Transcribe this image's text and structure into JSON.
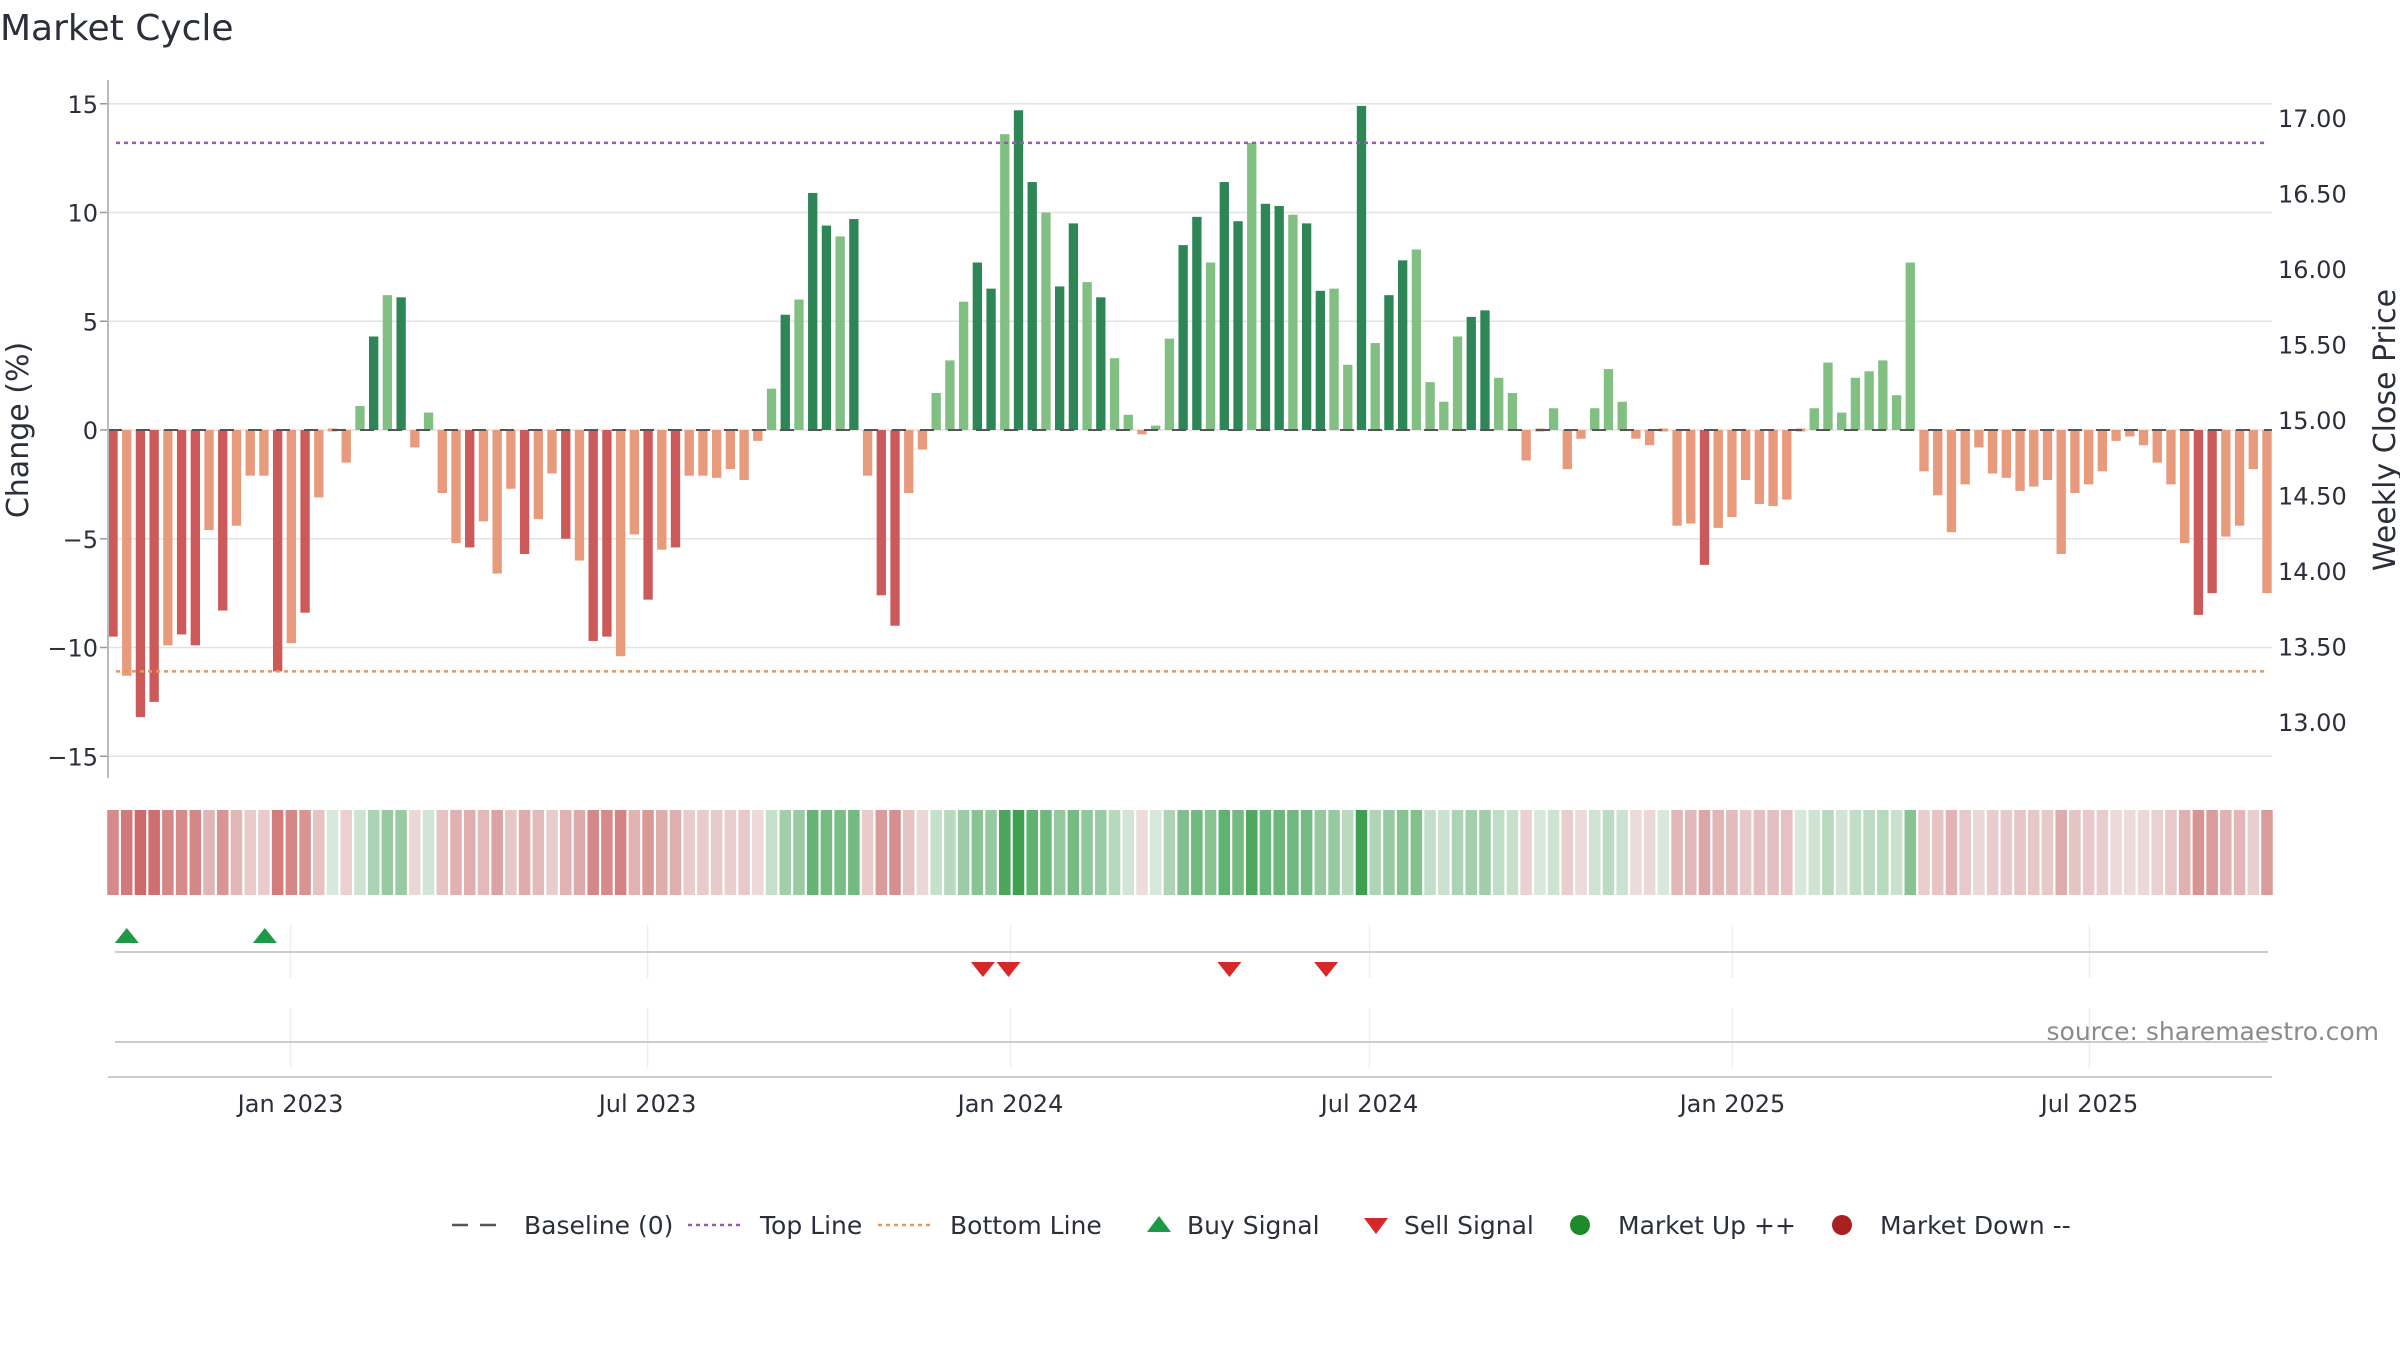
{
  "title": "Market Cycle",
  "source": "source: sharemaestro.com",
  "colors": {
    "strong_up": "#2e8657",
    "weak_up": "#82bf82",
    "strong_down": "#cc5a5a",
    "weak_down": "#e89a7c",
    "top_line": "#9b59b6",
    "bottom_line": "#e8965a",
    "buy": "#1e9a46",
    "sell": "#d62828",
    "market_up": "#1e8a2a",
    "market_down": "#a82020",
    "baseline": "#555555"
  },
  "chart_data": {
    "type": "bar",
    "x_start": "2022-10-03",
    "x_step_days": 7,
    "x_range": [
      "2022-10-03",
      "2025-09-29"
    ],
    "x_ticks": [
      "Jan 2023",
      "Jul 2023",
      "Jan 2024",
      "Jul 2024",
      "Jan 2025",
      "Jul 2025"
    ],
    "x_tick_dates": [
      "2023-01-01",
      "2023-07-01",
      "2024-01-01",
      "2024-07-01",
      "2025-01-01",
      "2025-07-01"
    ],
    "ylabel": "Change (%)",
    "ylim": [
      -16,
      16
    ],
    "y_ticks": [
      15,
      10,
      5,
      0,
      -5,
      -10,
      -15
    ],
    "y_tick_labels": [
      "15",
      "10",
      "5",
      "0",
      "−5",
      "−10",
      "−15"
    ],
    "y2label": "Weekly Close Price",
    "y2_ticks": [
      17.0,
      16.5,
      16.0,
      15.5,
      15.0,
      14.5,
      14.0,
      13.5,
      13.0
    ],
    "y2_tick_labels": [
      "17.00",
      "16.50",
      "16.00",
      "15.50",
      "15.00",
      "14.50",
      "14.00",
      "13.50",
      "13.00"
    ],
    "y2lim": [
      12.7,
      17.0
    ],
    "top_line": 13.2,
    "bottom_line": -11.1,
    "baseline": 0,
    "grid": true,
    "legend_position": "bottom-center",
    "series": [
      {
        "name": "Change (%)",
        "values": [
          -9.5,
          -11.3,
          -13.2,
          -12.5,
          -9.9,
          -9.4,
          -9.9,
          -4.6,
          -8.3,
          -4.4,
          -2.1,
          -2.1,
          -11.1,
          -9.8,
          -8.4,
          -3.1,
          0,
          -1.5,
          1.1,
          4.3,
          6.2,
          6.1,
          -0.8,
          0.8,
          -2.9,
          -5.2,
          -5.4,
          -4.2,
          -6.6,
          -2.7,
          -5.7,
          -4.1,
          -2.0,
          -5.0,
          -6.0,
          -9.7,
          -9.5,
          -10.4,
          -4.8,
          -7.8,
          -5.5,
          -5.4,
          -2.1,
          -2.1,
          -2.2,
          -1.8,
          -2.3,
          -0.5,
          1.9,
          5.3,
          6.0,
          10.9,
          9.4,
          8.9,
          9.7,
          -2.1,
          -7.6,
          -9.0,
          -2.9,
          -0.9,
          1.7,
          3.2,
          5.9,
          7.7,
          6.5,
          13.6,
          14.7,
          11.4,
          10.0,
          6.6,
          9.5,
          6.8,
          6.1,
          3.3,
          0.7,
          -0.2,
          0.2,
          4.2,
          8.5,
          9.8,
          7.7,
          11.4,
          9.6,
          13.2,
          10.4,
          10.3,
          9.9,
          9.5,
          6.4,
          6.5,
          3.0,
          14.9,
          4.0,
          6.2,
          7.8,
          8.3,
          2.2,
          1.3,
          4.3,
          5.2,
          5.5,
          2.4,
          1.7,
          -1.4,
          0,
          1.0,
          -1.8,
          -0.4,
          1.0,
          2.8,
          1.3,
          -0.4,
          -0.7,
          0,
          -4.4,
          -4.3,
          -6.2,
          -4.5,
          -4.0,
          -2.3,
          -3.4,
          -3.5,
          -3.2,
          0,
          1.0,
          3.1,
          0.8,
          2.4,
          2.7,
          3.2,
          1.6,
          7.7,
          -1.9,
          -3.0,
          -4.7,
          -2.5,
          -0.8,
          -2.0,
          -2.2,
          -2.8,
          -2.6,
          -2.3,
          -5.7,
          -2.9,
          -2.5,
          -1.9,
          -0.5,
          -0.3,
          -0.7,
          -1.5,
          -2.5,
          -5.2,
          -8.5,
          -7.5,
          -4.9,
          -4.4,
          -1.8,
          -7.5
        ]
      }
    ],
    "signals": {
      "buy": [
        "2022-10-10",
        "2022-12-19"
      ],
      "sell": [
        "2023-12-18",
        "2023-12-31",
        "2024-04-21",
        "2024-06-09"
      ],
      "market_up": [],
      "market_down": []
    },
    "legend": [
      "Baseline (0)",
      "Top Line",
      "Bottom Line",
      "Buy Signal",
      "Sell Signal",
      "Market Up ++",
      "Market Down --"
    ]
  }
}
